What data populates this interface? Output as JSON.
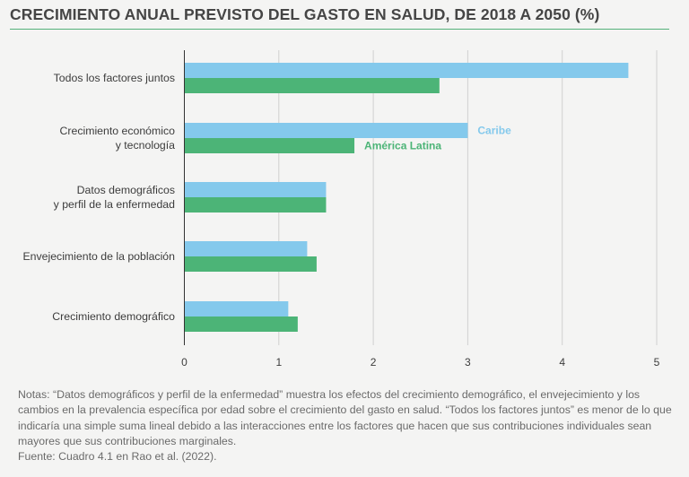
{
  "title": "CRECIMIENTO ANUAL PREVISTO DEL GASTO EN SALUD, DE 2018 A 2050 (%)",
  "colors": {
    "caribe": "#84c9ec",
    "america_latina": "#4cb477",
    "title_rule": "#53b07a",
    "axis": "#333333",
    "grid": "#d0d0d0"
  },
  "chart_data": {
    "type": "bar",
    "orientation": "horizontal",
    "title": "CRECIMIENTO ANUAL PREVISTO DEL GASTO EN SALUD, DE 2018 A 2050 (%)",
    "categories": [
      [
        "Todos los factores juntos"
      ],
      [
        "Crecimiento económico",
        "y tecnología"
      ],
      [
        "Datos demográficos",
        "y perfil de la enfermedad"
      ],
      [
        "Envejecimiento de la población"
      ],
      [
        "Crecimiento demográfico"
      ]
    ],
    "series": [
      {
        "name": "Caribe",
        "color": "#84c9ec",
        "values": [
          4.7,
          3.0,
          1.5,
          1.3,
          1.1
        ]
      },
      {
        "name": "América Latina",
        "color": "#4cb477",
        "values": [
          2.7,
          1.8,
          1.5,
          1.4,
          1.2
        ]
      }
    ],
    "xlim": [
      0,
      5
    ],
    "xticks": [
      "0",
      "1",
      "2",
      "3",
      "4",
      "5"
    ],
    "grid": true,
    "legend": "inline, next to second category bars"
  },
  "notes": {
    "label": "Notas:",
    "text": "“Datos demográficos y perfil de la enfermedad” muestra los efectos del crecimiento demográfico, el envejecimiento y los cambios en la prevalencia específica por edad sobre el crecimiento del gasto en salud. “Todos los factores juntos” es menor de lo que indicaría una simple suma lineal debido a las interacciones entre los factores que hacen que sus contribuciones individuales sean mayores que sus contribuciones marginales."
  },
  "source": {
    "label": "Fuente:",
    "text": "Cuadro 4.1 en Rao et al. (2022)."
  }
}
